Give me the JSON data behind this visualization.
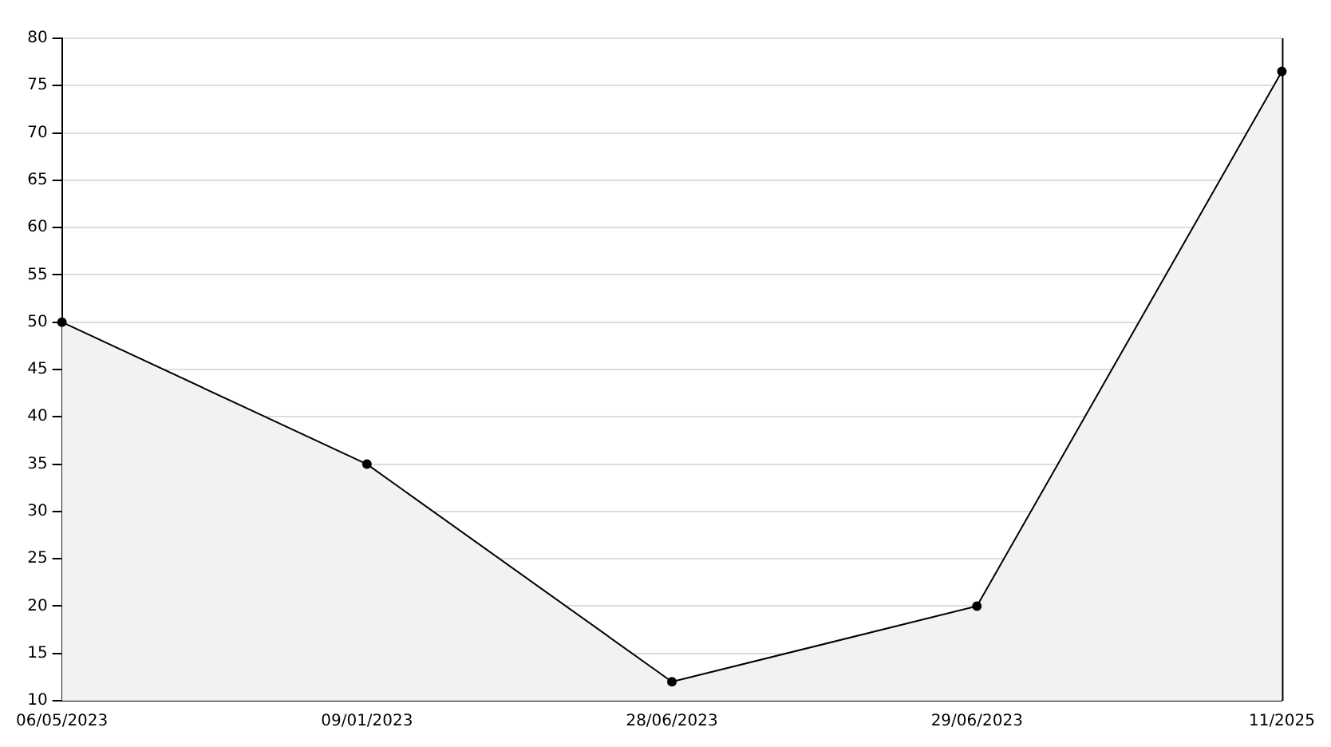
{
  "chart_data": {
    "type": "area",
    "categories": [
      "06/05/2023",
      "09/01/2023",
      "28/06/2023",
      "29/06/2023",
      "11/2025"
    ],
    "series": [
      {
        "color": "#000000",
        "values": [
          50,
          35,
          12,
          20,
          76.5
        ]
      }
    ],
    "ylim": [
      10,
      80
    ],
    "yticks": [
      10,
      15,
      20,
      25,
      30,
      35,
      40,
      45,
      50,
      55,
      60,
      65,
      70,
      75,
      80
    ],
    "grid": "y",
    "legend": false,
    "marker": "circle",
    "line_style": "solid"
  }
}
